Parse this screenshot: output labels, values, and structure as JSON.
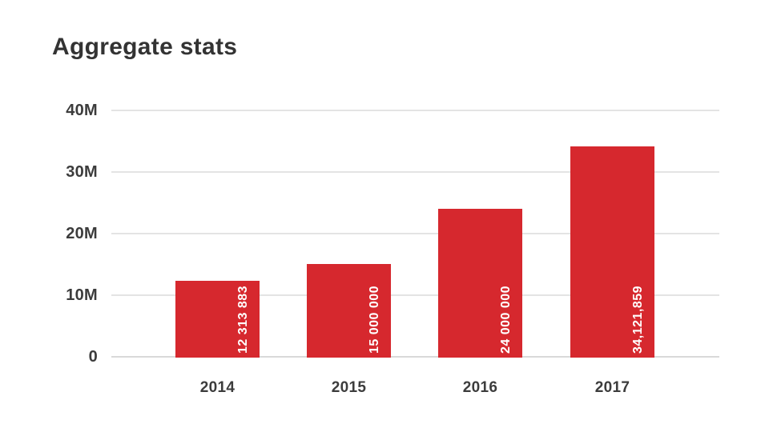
{
  "title": "Aggregate stats",
  "chart_data": {
    "type": "bar",
    "title": "Aggregate stats",
    "categories": [
      "2014",
      "2015",
      "2016",
      "2017"
    ],
    "values": [
      12313883,
      15000000,
      24000000,
      34121859
    ],
    "bar_value_labels": [
      "12 313 883",
      "15 000 000",
      "24 000 000",
      "34,121,859"
    ],
    "y_tick_labels": [
      "40M",
      "30M",
      "20M",
      "10M",
      "0"
    ],
    "ylim": [
      0,
      40000000
    ],
    "xlabel": "",
    "ylabel": "",
    "grid": true,
    "legend": false,
    "bar_color": "#d6282e",
    "bar_label_color": "#ffffff",
    "gridline_color": "#e4e4e4",
    "axis_text_color": "#3c3c3c",
    "title_color": "#333333",
    "background_color": "#ffffff"
  }
}
